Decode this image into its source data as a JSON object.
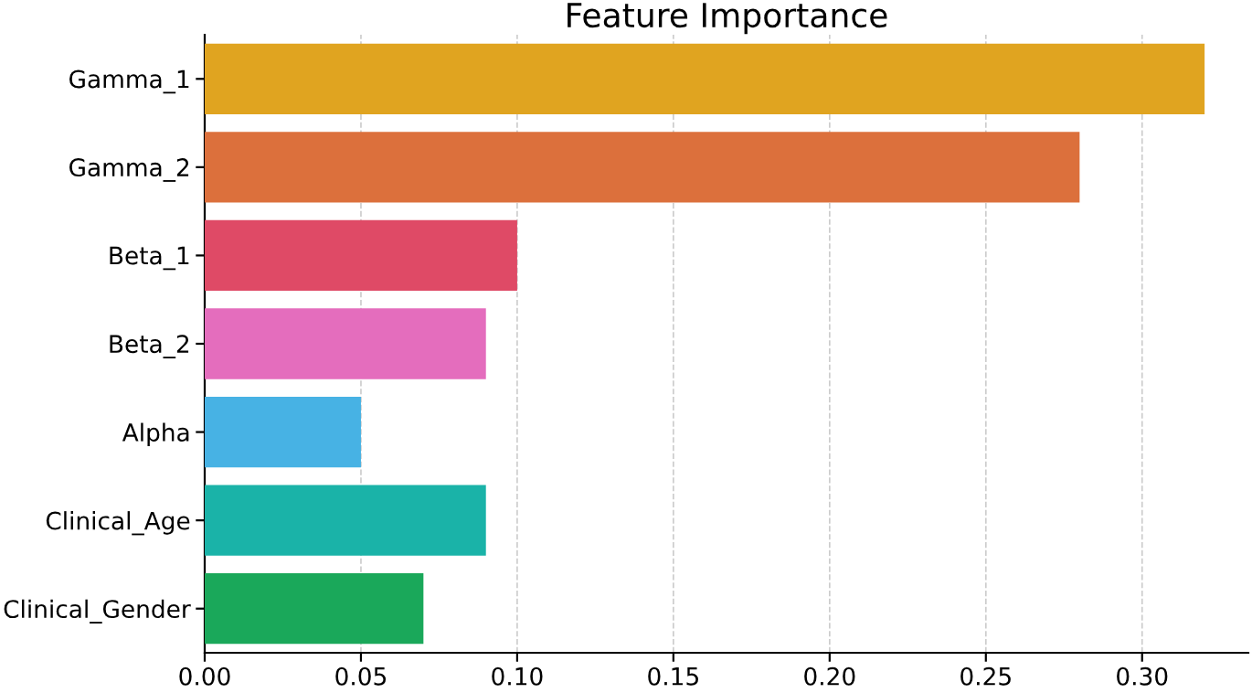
{
  "chart_data": {
    "type": "bar",
    "orientation": "horizontal",
    "title": "Feature Importance",
    "categories": [
      "Gamma_1",
      "Gamma_2",
      "Beta_1",
      "Beta_2",
      "Alpha",
      "Clinical_Age",
      "Clinical_Gender"
    ],
    "values": [
      0.32,
      0.28,
      0.1,
      0.09,
      0.05,
      0.09,
      0.07
    ],
    "colors": [
      "#e0a420",
      "#dc703c",
      "#df4a66",
      "#e46dbd",
      "#47b2e4",
      "#1ab3a8",
      "#1aa85a"
    ],
    "xlim": [
      0,
      0.334
    ],
    "xticks": [
      {
        "value": 0,
        "label": "0.00"
      },
      {
        "value": 0.05,
        "label": "0.05"
      },
      {
        "value": 0.1,
        "label": "0.10"
      },
      {
        "value": 0.15,
        "label": "0.15"
      },
      {
        "value": 0.2,
        "label": "0.20"
      },
      {
        "value": 0.25,
        "label": "0.25"
      },
      {
        "value": 0.3,
        "label": "0.30"
      }
    ],
    "grid": "x"
  }
}
